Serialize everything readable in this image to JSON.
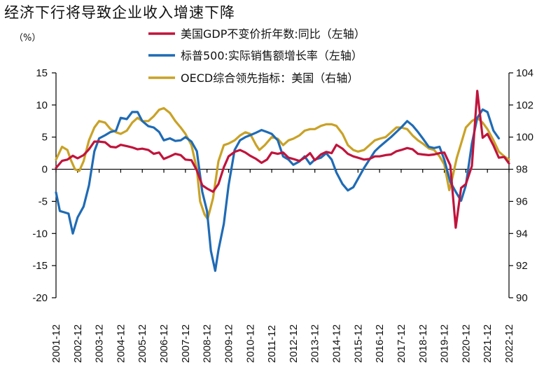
{
  "title": "经济下行将导致企业收入增速下降",
  "chart_data": {
    "type": "line",
    "title": "经济下行将导致企业收入增速下降",
    "left_unit": "（%）",
    "left_ylim": [
      -20,
      15
    ],
    "left_yticks": [
      -20,
      -15,
      -10,
      -5,
      0,
      5,
      10,
      15
    ],
    "right_ylim": [
      90,
      104
    ],
    "right_yticks": [
      90,
      92,
      94,
      96,
      98,
      100,
      102,
      104
    ],
    "x_range": [
      2001.92,
      2022.92
    ],
    "x_ticks": [
      "2001-12",
      "2002-12",
      "2003-12",
      "2004-12",
      "2005-12",
      "2006-12",
      "2007-12",
      "2008-12",
      "2009-12",
      "2010-12",
      "2011-12",
      "2012-12",
      "2013-12",
      "2014-12",
      "2015-12",
      "2016-12",
      "2017-12",
      "2018-12",
      "2019-12",
      "2020-12",
      "2021-12",
      "2022-12"
    ],
    "grid": false,
    "legend_position": "top",
    "series": [
      {
        "name": "美国GDP不变价折年数:同比（左轴）",
        "axis": "left",
        "color": "#c0143c",
        "points": [
          [
            2001.92,
            0.2
          ],
          [
            2002.2,
            1.3
          ],
          [
            2002.45,
            1.5
          ],
          [
            2002.7,
            2.1
          ],
          [
            2002.92,
            1.7
          ],
          [
            2003.2,
            2.2
          ],
          [
            2003.45,
            3.1
          ],
          [
            2003.7,
            4.3
          ],
          [
            2003.92,
            4.3
          ],
          [
            2004.2,
            4.2
          ],
          [
            2004.45,
            3.5
          ],
          [
            2004.7,
            3.4
          ],
          [
            2004.92,
            3.8
          ],
          [
            2005.2,
            3.6
          ],
          [
            2005.45,
            3.4
          ],
          [
            2005.7,
            3.1
          ],
          [
            2005.92,
            3.2
          ],
          [
            2006.2,
            3.0
          ],
          [
            2006.45,
            2.4
          ],
          [
            2006.7,
            2.6
          ],
          [
            2006.92,
            1.6
          ],
          [
            2007.2,
            2.0
          ],
          [
            2007.45,
            2.4
          ],
          [
            2007.7,
            2.2
          ],
          [
            2007.92,
            1.5
          ],
          [
            2008.2,
            1.4
          ],
          [
            2008.45,
            -0.2
          ],
          [
            2008.7,
            -2.5
          ],
          [
            2008.92,
            -3.0
          ],
          [
            2009.2,
            -3.5
          ],
          [
            2009.45,
            -2.3
          ],
          [
            2009.7,
            0.3
          ],
          [
            2009.92,
            2.0
          ],
          [
            2010.2,
            2.7
          ],
          [
            2010.45,
            3.0
          ],
          [
            2010.7,
            2.6
          ],
          [
            2010.92,
            2.1
          ],
          [
            2011.2,
            1.6
          ],
          [
            2011.45,
            1.0
          ],
          [
            2011.7,
            1.5
          ],
          [
            2011.92,
            2.6
          ],
          [
            2012.2,
            2.4
          ],
          [
            2012.45,
            2.6
          ],
          [
            2012.7,
            1.8
          ],
          [
            2012.92,
            1.6
          ],
          [
            2013.2,
            1.3
          ],
          [
            2013.45,
            1.8
          ],
          [
            2013.7,
            2.5
          ],
          [
            2013.92,
            1.4
          ],
          [
            2014.2,
            2.3
          ],
          [
            2014.45,
            2.7
          ],
          [
            2014.7,
            2.5
          ],
          [
            2014.92,
            3.8
          ],
          [
            2015.2,
            3.2
          ],
          [
            2015.45,
            2.4
          ],
          [
            2015.7,
            2.0
          ],
          [
            2015.92,
            1.8
          ],
          [
            2016.2,
            1.5
          ],
          [
            2016.45,
            1.6
          ],
          [
            2016.7,
            2.0
          ],
          [
            2016.92,
            2.0
          ],
          [
            2017.2,
            2.2
          ],
          [
            2017.45,
            2.3
          ],
          [
            2017.7,
            2.8
          ],
          [
            2017.92,
            3.0
          ],
          [
            2018.2,
            3.3
          ],
          [
            2018.45,
            3.1
          ],
          [
            2018.7,
            2.4
          ],
          [
            2018.92,
            2.3
          ],
          [
            2019.2,
            2.2
          ],
          [
            2019.45,
            2.3
          ],
          [
            2019.7,
            2.5
          ],
          [
            2019.92,
            2.6
          ],
          [
            2020.2,
            0.6
          ],
          [
            2020.45,
            -9.1
          ],
          [
            2020.7,
            -2.9
          ],
          [
            2020.92,
            -2.3
          ],
          [
            2021.2,
            0.5
          ],
          [
            2021.45,
            12.2
          ],
          [
            2021.7,
            4.9
          ],
          [
            2021.92,
            5.5
          ],
          [
            2022.2,
            3.7
          ],
          [
            2022.45,
            1.8
          ],
          [
            2022.7,
            1.9
          ],
          [
            2022.92,
            0.9
          ]
        ]
      },
      {
        "name": "标普500:实际销售额增长率（左轴）",
        "axis": "left",
        "color": "#1f6bb5",
        "points": [
          [
            2001.92,
            -3.6
          ],
          [
            2002.1,
            -6.5
          ],
          [
            2002.3,
            -6.7
          ],
          [
            2002.5,
            -6.9
          ],
          [
            2002.7,
            -10.0
          ],
          [
            2002.92,
            -7.5
          ],
          [
            2003.2,
            -5.8
          ],
          [
            2003.45,
            -2.5
          ],
          [
            2003.7,
            2.8
          ],
          [
            2003.92,
            4.8
          ],
          [
            2004.2,
            5.3
          ],
          [
            2004.45,
            5.8
          ],
          [
            2004.7,
            6.0
          ],
          [
            2004.92,
            8.0
          ],
          [
            2005.2,
            7.8
          ],
          [
            2005.45,
            8.9
          ],
          [
            2005.7,
            8.9
          ],
          [
            2005.92,
            7.5
          ],
          [
            2006.2,
            6.7
          ],
          [
            2006.45,
            6.5
          ],
          [
            2006.7,
            5.8
          ],
          [
            2006.92,
            4.5
          ],
          [
            2007.2,
            4.8
          ],
          [
            2007.45,
            4.4
          ],
          [
            2007.7,
            4.5
          ],
          [
            2007.92,
            5.0
          ],
          [
            2008.2,
            4.3
          ],
          [
            2008.45,
            2.8
          ],
          [
            2008.7,
            -3.5
          ],
          [
            2008.92,
            -6.5
          ],
          [
            2009.1,
            -12.7
          ],
          [
            2009.3,
            -15.8
          ],
          [
            2009.45,
            -12.6
          ],
          [
            2009.7,
            -8.5
          ],
          [
            2009.92,
            -2.5
          ],
          [
            2010.2,
            3.0
          ],
          [
            2010.45,
            4.5
          ],
          [
            2010.7,
            5.0
          ],
          [
            2010.92,
            5.3
          ],
          [
            2011.2,
            5.7
          ],
          [
            2011.45,
            6.1
          ],
          [
            2011.7,
            5.8
          ],
          [
            2011.92,
            5.5
          ],
          [
            2012.2,
            4.5
          ],
          [
            2012.45,
            2.0
          ],
          [
            2012.7,
            1.5
          ],
          [
            2012.92,
            0.7
          ],
          [
            2013.2,
            1.2
          ],
          [
            2013.45,
            2.0
          ],
          [
            2013.7,
            0.8
          ],
          [
            2013.92,
            1.5
          ],
          [
            2014.2,
            1.8
          ],
          [
            2014.45,
            2.5
          ],
          [
            2014.7,
            1.5
          ],
          [
            2014.92,
            -0.5
          ],
          [
            2015.2,
            -2.3
          ],
          [
            2015.45,
            -3.3
          ],
          [
            2015.7,
            -2.8
          ],
          [
            2015.92,
            -1.5
          ],
          [
            2016.2,
            0.2
          ],
          [
            2016.45,
            1.5
          ],
          [
            2016.7,
            2.8
          ],
          [
            2016.92,
            3.5
          ],
          [
            2017.2,
            4.3
          ],
          [
            2017.45,
            5.0
          ],
          [
            2017.7,
            5.8
          ],
          [
            2017.92,
            6.5
          ],
          [
            2018.2,
            7.5
          ],
          [
            2018.45,
            6.8
          ],
          [
            2018.7,
            5.8
          ],
          [
            2018.92,
            4.8
          ],
          [
            2019.2,
            3.5
          ],
          [
            2019.45,
            3.3
          ],
          [
            2019.7,
            3.5
          ],
          [
            2019.92,
            1.5
          ],
          [
            2020.2,
            -2.0
          ],
          [
            2020.45,
            -3.5
          ],
          [
            2020.7,
            -4.9
          ],
          [
            2020.92,
            -2.5
          ],
          [
            2021.2,
            4.0
          ],
          [
            2021.45,
            8.0
          ],
          [
            2021.7,
            9.3
          ],
          [
            2021.92,
            8.9
          ],
          [
            2022.2,
            6.0
          ],
          [
            2022.45,
            4.8
          ]
        ]
      },
      {
        "name": "OECD综合领先指标：美国（右轴）",
        "axis": "right",
        "color": "#c9a227",
        "points": [
          [
            2001.92,
            98.6
          ],
          [
            2002.2,
            99.4
          ],
          [
            2002.45,
            99.2
          ],
          [
            2002.6,
            98.6
          ],
          [
            2002.8,
            98.0
          ],
          [
            2003.0,
            97.9
          ],
          [
            2003.2,
            98.5
          ],
          [
            2003.45,
            99.8
          ],
          [
            2003.7,
            100.6
          ],
          [
            2003.92,
            101.0
          ],
          [
            2004.2,
            100.9
          ],
          [
            2004.45,
            100.5
          ],
          [
            2004.7,
            100.3
          ],
          [
            2004.92,
            100.2
          ],
          [
            2005.2,
            100.4
          ],
          [
            2005.45,
            100.9
          ],
          [
            2005.7,
            101.2
          ],
          [
            2005.92,
            101.0
          ],
          [
            2006.2,
            101.0
          ],
          [
            2006.45,
            101.3
          ],
          [
            2006.7,
            101.7
          ],
          [
            2006.92,
            101.8
          ],
          [
            2007.2,
            101.5
          ],
          [
            2007.45,
            101.0
          ],
          [
            2007.7,
            100.6
          ],
          [
            2007.92,
            100.2
          ],
          [
            2008.2,
            99.5
          ],
          [
            2008.45,
            98.0
          ],
          [
            2008.6,
            96.0
          ],
          [
            2008.8,
            95.2
          ],
          [
            2008.95,
            94.9
          ],
          [
            2009.2,
            96.2
          ],
          [
            2009.45,
            98.5
          ],
          [
            2009.7,
            99.5
          ],
          [
            2009.92,
            99.6
          ],
          [
            2010.2,
            99.8
          ],
          [
            2010.45,
            100.1
          ],
          [
            2010.7,
            100.3
          ],
          [
            2010.92,
            100.2
          ],
          [
            2011.2,
            99.5
          ],
          [
            2011.35,
            99.2
          ],
          [
            2011.6,
            99.5
          ],
          [
            2011.92,
            100.0
          ],
          [
            2012.2,
            99.9
          ],
          [
            2012.45,
            99.5
          ],
          [
            2012.7,
            99.8
          ],
          [
            2012.92,
            99.9
          ],
          [
            2013.2,
            100.1
          ],
          [
            2013.45,
            100.4
          ],
          [
            2013.7,
            100.5
          ],
          [
            2013.92,
            100.5
          ],
          [
            2014.2,
            100.7
          ],
          [
            2014.45,
            100.8
          ],
          [
            2014.7,
            100.8
          ],
          [
            2014.92,
            100.7
          ],
          [
            2015.2,
            100.2
          ],
          [
            2015.45,
            99.5
          ],
          [
            2015.7,
            99.2
          ],
          [
            2015.92,
            99.1
          ],
          [
            2016.2,
            99.2
          ],
          [
            2016.45,
            99.5
          ],
          [
            2016.7,
            99.8
          ],
          [
            2016.92,
            99.9
          ],
          [
            2017.2,
            100.0
          ],
          [
            2017.45,
            100.3
          ],
          [
            2017.7,
            100.6
          ],
          [
            2017.92,
            100.6
          ],
          [
            2018.2,
            100.5
          ],
          [
            2018.45,
            100.1
          ],
          [
            2018.7,
            99.8
          ],
          [
            2018.92,
            99.6
          ],
          [
            2019.2,
            99.3
          ],
          [
            2019.45,
            99.2
          ],
          [
            2019.7,
            98.8
          ],
          [
            2019.92,
            98.3
          ],
          [
            2020.15,
            96.7
          ],
          [
            2020.3,
            97.5
          ],
          [
            2020.5,
            98.7
          ],
          [
            2020.7,
            99.6
          ],
          [
            2020.92,
            100.6
          ],
          [
            2021.2,
            101.0
          ],
          [
            2021.45,
            101.2
          ],
          [
            2021.7,
            100.9
          ],
          [
            2021.92,
            100.5
          ],
          [
            2022.2,
            99.8
          ],
          [
            2022.45,
            99.1
          ],
          [
            2022.7,
            98.8
          ],
          [
            2022.92,
            98.6
          ]
        ]
      }
    ]
  }
}
